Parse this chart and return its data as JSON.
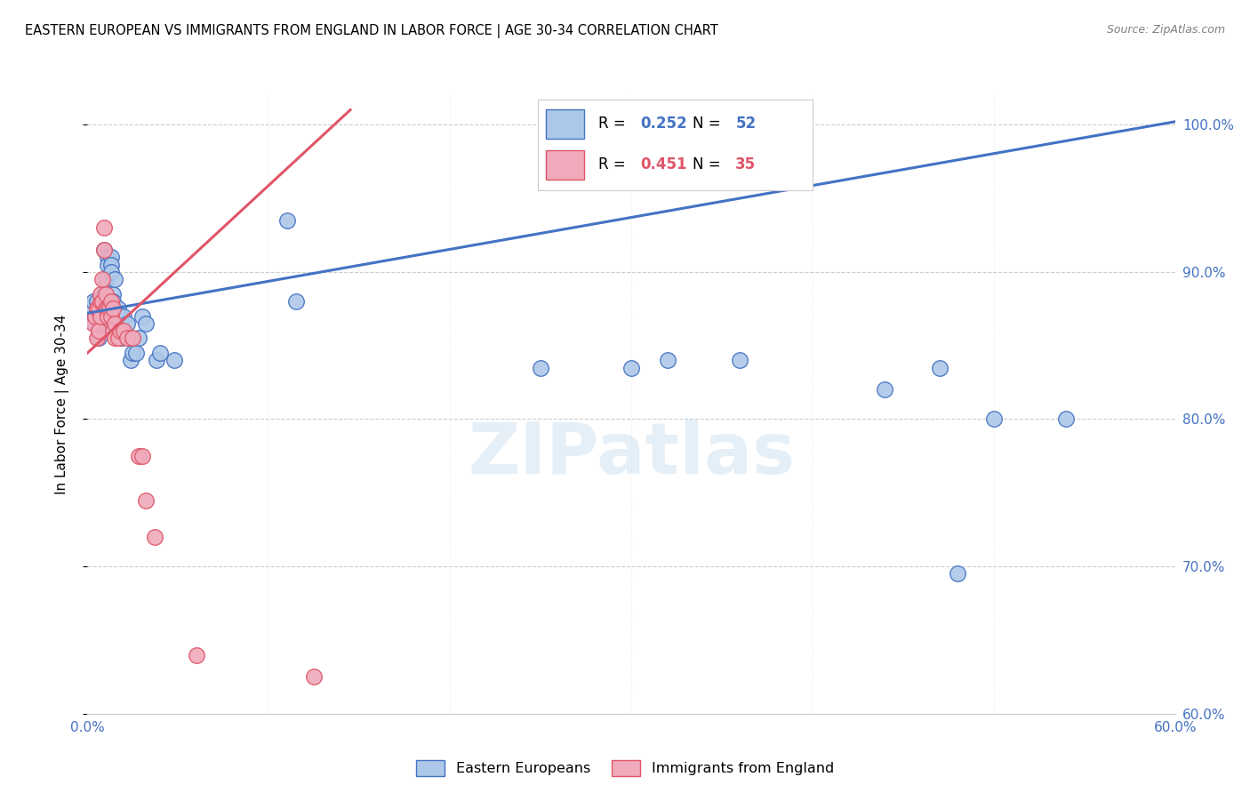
{
  "title": "EASTERN EUROPEAN VS IMMIGRANTS FROM ENGLAND IN LABOR FORCE | AGE 30-34 CORRELATION CHART",
  "source": "Source: ZipAtlas.com",
  "ylabel": "In Labor Force | Age 30-34",
  "watermark": "ZIPatlas",
  "blue_r": 0.252,
  "blue_n": 52,
  "pink_r": 0.451,
  "pink_n": 35,
  "xmin": 0.0,
  "xmax": 0.6,
  "ymin": 0.6,
  "ymax": 1.02,
  "yticks": [
    0.6,
    0.7,
    0.8,
    0.9,
    1.0
  ],
  "ytick_labels": [
    "60.0%",
    "70.0%",
    "80.0%",
    "90.0%",
    "100.0%"
  ],
  "xticks": [
    0.0,
    0.1,
    0.2,
    0.3,
    0.4,
    0.5,
    0.6
  ],
  "blue_line_x": [
    0.0,
    0.6
  ],
  "blue_line_y": [
    0.872,
    1.002
  ],
  "pink_line_x": [
    0.0,
    0.145
  ],
  "pink_line_y": [
    0.845,
    1.01
  ],
  "blue_dots": [
    [
      0.001,
      0.875
    ],
    [
      0.003,
      0.88
    ],
    [
      0.004,
      0.87
    ],
    [
      0.004,
      0.865
    ],
    [
      0.005,
      0.875
    ],
    [
      0.005,
      0.88
    ],
    [
      0.006,
      0.86
    ],
    [
      0.006,
      0.855
    ],
    [
      0.007,
      0.87
    ],
    [
      0.007,
      0.865
    ],
    [
      0.008,
      0.88
    ],
    [
      0.008,
      0.875
    ],
    [
      0.009,
      0.885
    ],
    [
      0.009,
      0.915
    ],
    [
      0.01,
      0.895
    ],
    [
      0.011,
      0.91
    ],
    [
      0.011,
      0.905
    ],
    [
      0.012,
      0.88
    ],
    [
      0.012,
      0.875
    ],
    [
      0.013,
      0.91
    ],
    [
      0.013,
      0.905
    ],
    [
      0.013,
      0.9
    ],
    [
      0.014,
      0.885
    ],
    [
      0.014,
      0.88
    ],
    [
      0.015,
      0.895
    ],
    [
      0.015,
      0.87
    ],
    [
      0.015,
      0.865
    ],
    [
      0.017,
      0.875
    ],
    [
      0.018,
      0.87
    ],
    [
      0.019,
      0.855
    ],
    [
      0.02,
      0.87
    ],
    [
      0.022,
      0.865
    ],
    [
      0.024,
      0.84
    ],
    [
      0.025,
      0.845
    ],
    [
      0.027,
      0.845
    ],
    [
      0.028,
      0.855
    ],
    [
      0.03,
      0.87
    ],
    [
      0.032,
      0.865
    ],
    [
      0.038,
      0.84
    ],
    [
      0.04,
      0.845
    ],
    [
      0.048,
      0.84
    ],
    [
      0.11,
      0.935
    ],
    [
      0.115,
      0.88
    ],
    [
      0.25,
      0.835
    ],
    [
      0.3,
      0.835
    ],
    [
      0.32,
      0.84
    ],
    [
      0.36,
      0.84
    ],
    [
      0.44,
      0.82
    ],
    [
      0.47,
      0.835
    ],
    [
      0.48,
      0.695
    ],
    [
      0.5,
      0.8
    ],
    [
      0.54,
      0.8
    ]
  ],
  "pink_dots": [
    [
      0.003,
      0.865
    ],
    [
      0.004,
      0.87
    ],
    [
      0.005,
      0.875
    ],
    [
      0.005,
      0.855
    ],
    [
      0.006,
      0.86
    ],
    [
      0.006,
      0.875
    ],
    [
      0.007,
      0.87
    ],
    [
      0.007,
      0.88
    ],
    [
      0.007,
      0.885
    ],
    [
      0.008,
      0.895
    ],
    [
      0.008,
      0.88
    ],
    [
      0.009,
      0.915
    ],
    [
      0.009,
      0.93
    ],
    [
      0.01,
      0.875
    ],
    [
      0.01,
      0.885
    ],
    [
      0.011,
      0.875
    ],
    [
      0.011,
      0.87
    ],
    [
      0.012,
      0.875
    ],
    [
      0.013,
      0.88
    ],
    [
      0.013,
      0.87
    ],
    [
      0.014,
      0.875
    ],
    [
      0.014,
      0.86
    ],
    [
      0.015,
      0.855
    ],
    [
      0.015,
      0.865
    ],
    [
      0.017,
      0.855
    ],
    [
      0.018,
      0.86
    ],
    [
      0.02,
      0.86
    ],
    [
      0.022,
      0.855
    ],
    [
      0.025,
      0.855
    ],
    [
      0.028,
      0.775
    ],
    [
      0.03,
      0.775
    ],
    [
      0.032,
      0.745
    ],
    [
      0.037,
      0.72
    ],
    [
      0.06,
      0.64
    ],
    [
      0.125,
      0.625
    ]
  ],
  "blue_color": "#adc8e8",
  "pink_color": "#f0aabb",
  "blue_line_color": "#4472c4",
  "pink_line_color": "#e05568",
  "legend_blue_label": "Eastern Europeans",
  "legend_pink_label": "Immigrants from England",
  "grid_color": "#cccccc",
  "bg_color": "#ffffff",
  "axis_color": "#4472c4"
}
